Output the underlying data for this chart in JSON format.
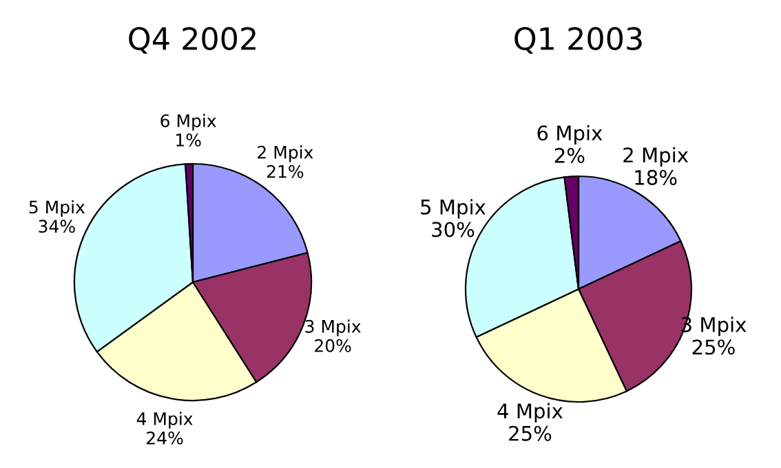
{
  "chart_data": [
    {
      "type": "pie",
      "title": "Q4 2002",
      "categories": [
        "2 Mpix",
        "3 Mpix",
        "4 Mpix",
        "5 Mpix",
        "6 Mpix"
      ],
      "values": [
        21,
        20,
        24,
        34,
        1
      ],
      "value_labels": [
        "21%",
        "20%",
        "24%",
        "34%",
        "1%"
      ],
      "colors": [
        "#9999ff",
        "#993366",
        "#ffffcc",
        "#ccffff",
        "#660066"
      ]
    },
    {
      "type": "pie",
      "title": "Q1 2003",
      "categories": [
        "2 Mpix",
        "3 Mpix",
        "4 Mpix",
        "5 Mpix",
        "6 Mpix"
      ],
      "values": [
        18,
        25,
        25,
        30,
        2
      ],
      "value_labels": [
        "18%",
        "25%",
        "25%",
        "30%",
        "2%"
      ],
      "colors": [
        "#9999ff",
        "#993366",
        "#ffffcc",
        "#ccffff",
        "#660066"
      ]
    }
  ]
}
